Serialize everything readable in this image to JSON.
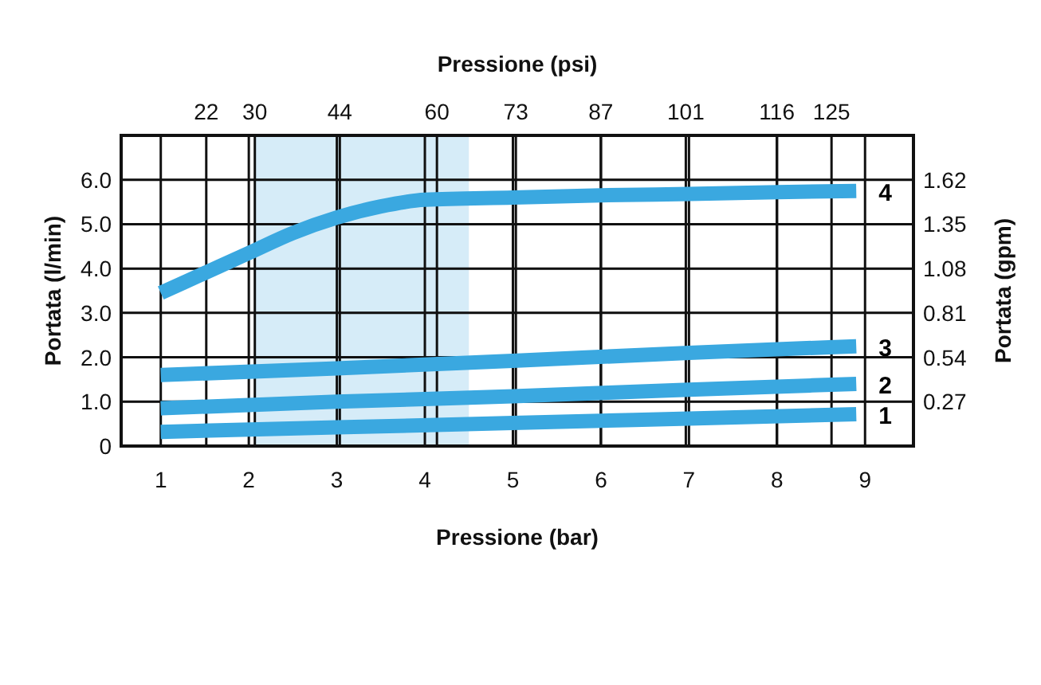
{
  "chart_data": {
    "type": "line",
    "xlabel": "Pressione (bar)",
    "x2label": "Pressione (psi)",
    "ylabel": "Portata (l/min)",
    "y2label": "Portata (gpm)",
    "xlim": [
      0.55,
      9.55
    ],
    "xticks": [
      1,
      2,
      3,
      4,
      5,
      6,
      7,
      8,
      9
    ],
    "x2lim": [
      7.98,
      138.5
    ],
    "x2ticks": [
      22,
      30,
      44,
      60,
      73,
      87,
      101,
      116,
      125
    ],
    "ylim": [
      0,
      7
    ],
    "yticks": [
      {
        "value": 0,
        "label": "0"
      },
      {
        "value": 1,
        "label": "1.0"
      },
      {
        "value": 2,
        "label": "2.0"
      },
      {
        "value": 3,
        "label": "3.0"
      },
      {
        "value": 4,
        "label": "4.0"
      },
      {
        "value": 5,
        "label": "5.0"
      },
      {
        "value": 6,
        "label": "6.0"
      }
    ],
    "y2lim": [
      0,
      1.89
    ],
    "y2ticks": [
      0.27,
      0.54,
      0.81,
      1.08,
      1.35,
      1.62
    ],
    "grid": true,
    "line_style": "solid",
    "marker": "none",
    "bands": [
      {
        "axis": "x",
        "from": 2.07,
        "to": 4.5,
        "color": "#d6ecf8"
      }
    ],
    "series": [
      {
        "name": "4",
        "color": "#3aa8e0",
        "x": [
          1,
          1.5,
          2,
          2.5,
          3,
          3.5,
          4,
          5,
          6,
          7,
          8,
          8.9
        ],
        "values": [
          3.45,
          3.9,
          4.35,
          4.8,
          5.15,
          5.4,
          5.55,
          5.6,
          5.65,
          5.68,
          5.72,
          5.75
        ]
      },
      {
        "name": "3",
        "color": "#3aa8e0",
        "x": [
          1,
          3,
          5,
          7,
          8.9
        ],
        "values": [
          1.6,
          1.75,
          1.92,
          2.1,
          2.25
        ]
      },
      {
        "name": "2",
        "color": "#3aa8e0",
        "x": [
          1,
          3,
          5,
          7,
          8.9
        ],
        "values": [
          0.85,
          1.0,
          1.12,
          1.27,
          1.4
        ]
      },
      {
        "name": "1",
        "color": "#3aa8e0",
        "x": [
          1,
          3,
          5,
          7,
          8.9
        ],
        "values": [
          0.32,
          0.42,
          0.52,
          0.62,
          0.72
        ]
      }
    ]
  }
}
